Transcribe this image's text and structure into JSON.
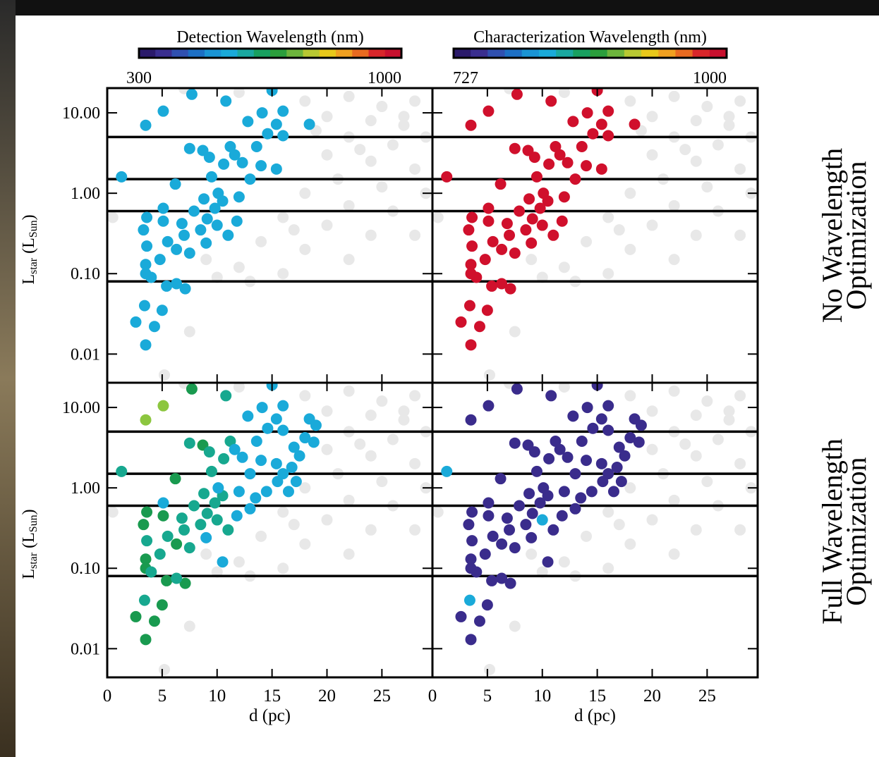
{
  "colorbars": [
    {
      "title": "Detection Wavelength (nm)",
      "ticks": [
        300,
        1000
      ],
      "colors": [
        "#2b1a6b",
        "#3a2e8f",
        "#3050b0",
        "#1c6fc4",
        "#1a94d4",
        "#1aaad9",
        "#1aa8a0",
        "#18a060",
        "#2b9e3c",
        "#6db43c",
        "#b8c832",
        "#e8c81a",
        "#f0a020",
        "#e86a20",
        "#d8262a",
        "#c8102e"
      ]
    },
    {
      "title": "Characterization Wavelength (nm)",
      "ticks": [
        727,
        1000
      ],
      "colors": [
        "#2b1a6b",
        "#3a2e8f",
        "#3050b0",
        "#1c6fc4",
        "#1a94d4",
        "#1aaad9",
        "#1aa8a0",
        "#18a060",
        "#2b9e3c",
        "#6db43c",
        "#b8c832",
        "#e8c81a",
        "#f0a020",
        "#e86a20",
        "#d8262a",
        "#c8102e"
      ]
    }
  ],
  "row_labels": [
    [
      "No Wavelength",
      "Optimization"
    ],
    [
      "Full Wavelength",
      "Optimization"
    ]
  ],
  "background": {
    "color": "#e8e8e8",
    "x": [
      7,
      12,
      18,
      22,
      25,
      28,
      20,
      24,
      27,
      22,
      26,
      29,
      20,
      24,
      28,
      21,
      25,
      29,
      18,
      22,
      26,
      16,
      20,
      24,
      28,
      14,
      18,
      22,
      12,
      16,
      10,
      0.5,
      7.5,
      5.2,
      9,
      13,
      19,
      23,
      27,
      17
    ],
    "values": [
      20,
      18,
      14,
      16,
      12,
      14,
      9,
      8,
      7,
      5,
      4,
      5,
      3,
      2.5,
      2,
      1.5,
      1.2,
      1,
      1.0,
      0.7,
      0.6,
      0.5,
      0.4,
      0.3,
      0.3,
      0.25,
      0.2,
      0.15,
      0.12,
      0.1,
      0.09,
      0.5,
      0.019,
      0.0055,
      0.15,
      0.08,
      6,
      3.5,
      9,
      0.35
    ]
  },
  "chart_data": [
    {
      "type": "scatter",
      "xlim": [
        0,
        29.6
      ],
      "ylim": [
        0.0044,
        20.3
      ],
      "log_y": true,
      "xticks": [
        0,
        5,
        10,
        15,
        20,
        25
      ],
      "yticks": [
        0.01,
        {
          "value": 0.1,
          "label": "0.10"
        },
        {
          "value": 1,
          "label": "1.00"
        },
        {
          "value": 10,
          "label": "10.00"
        }
      ],
      "hlines": [
        5,
        1.5,
        0.6,
        0.08
      ],
      "ylabel": [
        "L",
        "star",
        " (L",
        "Sun",
        ")"
      ],
      "series": [
        {
          "color": "#1aaad9",
          "x": [
            1.3,
            3.5,
            5.1,
            7.7,
            10.8,
            15,
            14.1,
            15.4,
            16,
            18.4,
            12.8,
            14.6,
            16,
            13.6,
            11.2,
            7.5,
            8.7,
            9.3,
            11.6,
            12.3,
            10.6,
            14,
            15.4,
            13,
            9.5,
            6.2,
            10.1,
            12,
            8.8,
            10.5,
            9.8,
            7.9,
            5.1,
            3.6,
            5.1,
            6.8,
            9.1,
            11.8,
            10,
            8.5,
            11,
            7,
            3.3,
            5.5,
            9,
            6.3,
            7.5,
            3.6,
            4.8,
            3.5,
            3.5,
            4,
            5.4,
            6.3,
            7.1,
            3.4,
            5,
            2.6,
            4.3,
            3.5
          ],
          "values": [
            1.6,
            7.0,
            10.5,
            17,
            14,
            19,
            10,
            7.2,
            10.5,
            7.2,
            7.8,
            5.5,
            5.2,
            3.8,
            3.8,
            3.6,
            3.4,
            2.8,
            3.0,
            2.4,
            2.3,
            2.2,
            2.0,
            1.5,
            1.6,
            1.3,
            1.0,
            0.9,
            0.85,
            0.8,
            0.65,
            0.6,
            0.65,
            0.5,
            0.45,
            0.42,
            0.48,
            0.45,
            0.4,
            0.35,
            0.3,
            0.3,
            0.35,
            0.25,
            0.24,
            0.2,
            0.18,
            0.22,
            0.15,
            0.13,
            0.1,
            0.09,
            0.07,
            0.075,
            0.065,
            0.04,
            0.035,
            0.025,
            0.022,
            0.013
          ]
        }
      ]
    },
    {
      "type": "scatter",
      "xlim": [
        0,
        29.6
      ],
      "ylim": [
        0.0044,
        20.3
      ],
      "log_y": true,
      "xticks": [
        0,
        5,
        10,
        15,
        20,
        25
      ],
      "yticks": [
        0.01,
        {
          "value": 0.1,
          "label": "0.10"
        },
        {
          "value": 1,
          "label": "1.00"
        },
        {
          "value": 10,
          "label": "10.00"
        }
      ],
      "hlines": [
        5,
        1.5,
        0.6,
        0.08
      ],
      "series": [
        {
          "color": "#d0102c",
          "x": [
            1.3,
            3.5,
            5.1,
            7.7,
            10.8,
            15,
            14.1,
            15.4,
            16,
            18.4,
            12.8,
            14.6,
            16,
            13.6,
            11.2,
            7.5,
            8.7,
            9.3,
            11.6,
            12.3,
            10.6,
            14,
            15.4,
            13,
            9.5,
            6.2,
            10.1,
            12,
            8.8,
            10.5,
            9.8,
            7.9,
            5.1,
            3.6,
            5.1,
            6.8,
            9.1,
            11.8,
            10,
            8.5,
            11,
            7,
            3.3,
            5.5,
            9,
            6.3,
            7.5,
            3.6,
            4.8,
            3.5,
            3.5,
            4,
            5.4,
            6.3,
            7.1,
            3.4,
            5,
            2.6,
            4.3,
            3.5
          ],
          "values": [
            1.6,
            7.0,
            10.5,
            17,
            14,
            19,
            10,
            7.2,
            10.5,
            7.2,
            7.8,
            5.5,
            5.2,
            3.8,
            3.8,
            3.6,
            3.4,
            2.8,
            3.0,
            2.4,
            2.3,
            2.2,
            2.0,
            1.5,
            1.6,
            1.3,
            1.0,
            0.9,
            0.85,
            0.8,
            0.65,
            0.6,
            0.65,
            0.5,
            0.45,
            0.42,
            0.48,
            0.45,
            0.4,
            0.35,
            0.3,
            0.3,
            0.35,
            0.25,
            0.24,
            0.2,
            0.18,
            0.22,
            0.15,
            0.13,
            0.1,
            0.09,
            0.07,
            0.075,
            0.065,
            0.04,
            0.035,
            0.025,
            0.022,
            0.013
          ]
        }
      ]
    },
    {
      "type": "scatter",
      "xlim": [
        0,
        29.6
      ],
      "ylim": [
        0.0044,
        20.3
      ],
      "log_y": true,
      "xticks": [
        0,
        5,
        10,
        15,
        20,
        25
      ],
      "yticks": [
        0.01,
        {
          "value": 0.1,
          "label": "0.10"
        },
        {
          "value": 1,
          "label": "1.00"
        },
        {
          "value": 10,
          "label": "10.00"
        }
      ],
      "hlines": [
        5,
        1.5,
        0.6,
        0.08
      ],
      "ylabel": [
        "L",
        "star",
        " (L",
        "Sun",
        ")"
      ],
      "xlabel": "d (pc)",
      "series": [
        {
          "color": "#8cc63f",
          "x": [
            3.5,
            5.1
          ],
          "values": [
            7.0,
            10.5
          ]
        },
        {
          "color": "#199a4f",
          "x": [
            7.7,
            8.7,
            6.2,
            3.6,
            5.1,
            3.3,
            3.5,
            3.5,
            2.6,
            5.4,
            7.1,
            3.5,
            6.3,
            5,
            4.3
          ],
          "values": [
            17,
            3.4,
            1.3,
            0.5,
            0.45,
            0.35,
            0.13,
            0.1,
            0.025,
            0.07,
            0.065,
            0.013,
            0.2,
            0.035,
            0.022
          ]
        },
        {
          "color": "#17a88f",
          "x": [
            1.3,
            7.5,
            9.3,
            10.6,
            9.5,
            8.8,
            10.5,
            9.8,
            7.9,
            6.8,
            9.1,
            10,
            8.5,
            7,
            5.5,
            7.5,
            3.6,
            4.8,
            4,
            6.3,
            3.4,
            11.2,
            11,
            10.8
          ],
          "values": [
            1.6,
            3.6,
            2.8,
            2.3,
            1.6,
            0.85,
            0.8,
            0.65,
            0.6,
            0.42,
            0.48,
            0.4,
            0.35,
            0.3,
            0.25,
            0.18,
            0.22,
            0.15,
            0.09,
            0.075,
            0.04,
            3.8,
            0.3,
            14
          ]
        },
        {
          "color": "#1aaad9",
          "x": [
            15,
            14.1,
            15.4,
            16,
            18.4,
            12.8,
            14.6,
            16,
            13.6,
            11.6,
            12.3,
            14,
            15.4,
            13,
            10.1,
            12,
            5.1,
            11.8,
            9,
            17,
            18,
            19,
            18.8,
            17.5,
            16.8,
            16,
            17.2,
            15.5,
            14.5,
            13.5,
            16.5,
            13,
            10.5
          ],
          "values": [
            19,
            10,
            7.2,
            10.5,
            7.2,
            7.8,
            5.5,
            5.2,
            3.8,
            3.0,
            2.4,
            2.2,
            2.0,
            1.5,
            1.0,
            0.9,
            0.65,
            0.45,
            0.24,
            3.2,
            4.2,
            6.0,
            3.7,
            2.5,
            1.8,
            1.5,
            1.2,
            1.2,
            0.9,
            0.75,
            0.9,
            0.55,
            0.12
          ]
        }
      ]
    },
    {
      "type": "scatter",
      "xlim": [
        0,
        29.6
      ],
      "ylim": [
        0.0044,
        20.3
      ],
      "log_y": true,
      "xticks": [
        0,
        5,
        10,
        15,
        20,
        25
      ],
      "yticks": [
        0.01,
        {
          "value": 0.1,
          "label": "0.10"
        },
        {
          "value": 1,
          "label": "1.00"
        },
        {
          "value": 10,
          "label": "10.00"
        }
      ],
      "hlines": [
        5,
        1.5,
        0.6,
        0.08
      ],
      "xlabel": "d (pc)",
      "series": [
        {
          "color": "#3a2c8c",
          "x": [
            3.5,
            5.1,
            7.7,
            10.8,
            15,
            14.1,
            15.4,
            16,
            18.4,
            12.8,
            14.6,
            16,
            13.6,
            11.2,
            7.5,
            8.7,
            9.3,
            11.6,
            12.3,
            10.6,
            14,
            15.4,
            13,
            9.5,
            6.2,
            10.1,
            12,
            8.8,
            10.5,
            9.8,
            7.9,
            5.1,
            3.6,
            5.1,
            6.8,
            9.1,
            11.8,
            8.5,
            11,
            7,
            3.3,
            5.5,
            9,
            6.3,
            7.5,
            3.6,
            4.8,
            3.5,
            3.5,
            4,
            5.4,
            6.3,
            7.1,
            5,
            2.6,
            4.3,
            3.5,
            17,
            18,
            19,
            18.8,
            17.5,
            16.8,
            16,
            17.2,
            15.5,
            14.5,
            13.5,
            16.5,
            13,
            10.5
          ],
          "values": [
            7.0,
            10.5,
            17,
            14,
            19,
            10,
            7.2,
            10.5,
            7.2,
            7.8,
            5.5,
            5.2,
            3.8,
            3.8,
            3.6,
            3.4,
            2.8,
            3.0,
            2.4,
            2.3,
            2.2,
            2.0,
            1.5,
            1.6,
            1.3,
            1.0,
            0.9,
            0.85,
            0.8,
            0.65,
            0.6,
            0.65,
            0.5,
            0.45,
            0.42,
            0.48,
            0.45,
            0.35,
            0.3,
            0.3,
            0.35,
            0.25,
            0.24,
            0.2,
            0.18,
            0.22,
            0.15,
            0.13,
            0.1,
            0.09,
            0.07,
            0.075,
            0.065,
            0.035,
            0.025,
            0.022,
            0.013,
            3.2,
            4.2,
            6.0,
            3.7,
            2.5,
            1.8,
            1.5,
            1.2,
            1.2,
            0.9,
            0.75,
            0.9,
            0.55,
            0.12
          ]
        },
        {
          "color": "#1aaad9",
          "x": [
            1.3,
            3.4,
            10
          ],
          "values": [
            1.6,
            0.04,
            0.4
          ]
        }
      ]
    }
  ]
}
